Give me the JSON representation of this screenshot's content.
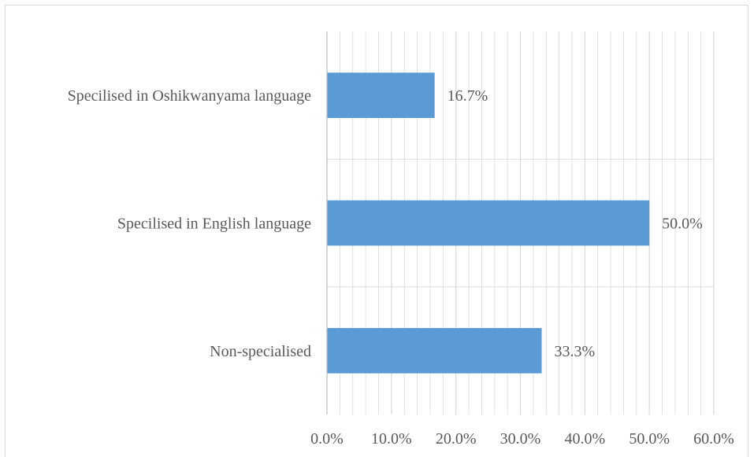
{
  "chart_data": {
    "type": "bar",
    "orientation": "horizontal",
    "categories": [
      "Specilised in Oshikwanyama language",
      "Specilised in English language",
      "Non-specialised"
    ],
    "values": [
      16.7,
      50.0,
      33.3
    ],
    "value_labels": [
      "16.7%",
      "50.0%",
      "33.3%"
    ],
    "x_ticks": [
      0,
      10,
      20,
      30,
      40,
      50,
      60
    ],
    "x_tick_labels": [
      "0.0%",
      "10.0%",
      "20.0%",
      "30.0%",
      "40.0%",
      "50.0%",
      "60.0%"
    ],
    "xlim": [
      0,
      60
    ],
    "title": "",
    "xlabel": "",
    "ylabel": "",
    "grid": "vertical major and minor",
    "legend": "none",
    "colors": {
      "bar": "#5b9bd5",
      "gridline": "#d9d9d9",
      "text": "#595959"
    }
  }
}
